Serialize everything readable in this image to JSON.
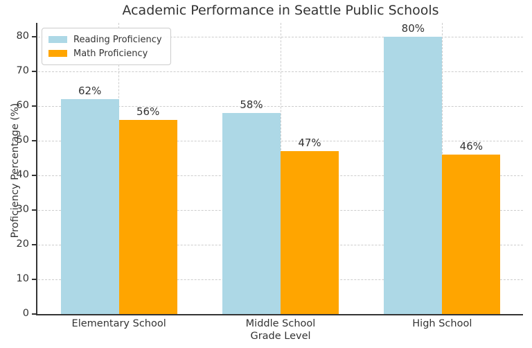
{
  "chart_data": {
    "type": "bar",
    "title": "Academic Performance in Seattle Public Schools",
    "xlabel": "Grade Level",
    "ylabel": "Proficiency Percentage (%)",
    "categories": [
      "Elementary School",
      "Middle School",
      "High School"
    ],
    "series": [
      {
        "name": "Reading Proficiency",
        "color": "#ADD8E6",
        "values": [
          62,
          58,
          80
        ],
        "labels": [
          "62%",
          "58%",
          "80%"
        ]
      },
      {
        "name": "Math Proficiency",
        "color": "#FFA500",
        "values": [
          56,
          47,
          46
        ],
        "labels": [
          "56%",
          "47%",
          "46%"
        ]
      }
    ],
    "yticks": [
      0,
      10,
      20,
      30,
      40,
      50,
      60,
      70,
      80
    ],
    "ylim": [
      0,
      84
    ],
    "grid": "dashed, both axes, below bars",
    "legend_position": "upper left",
    "colors": {
      "text": "#333333",
      "spine": "#333333",
      "grid": "#cccccc",
      "background": "#ffffff"
    }
  }
}
